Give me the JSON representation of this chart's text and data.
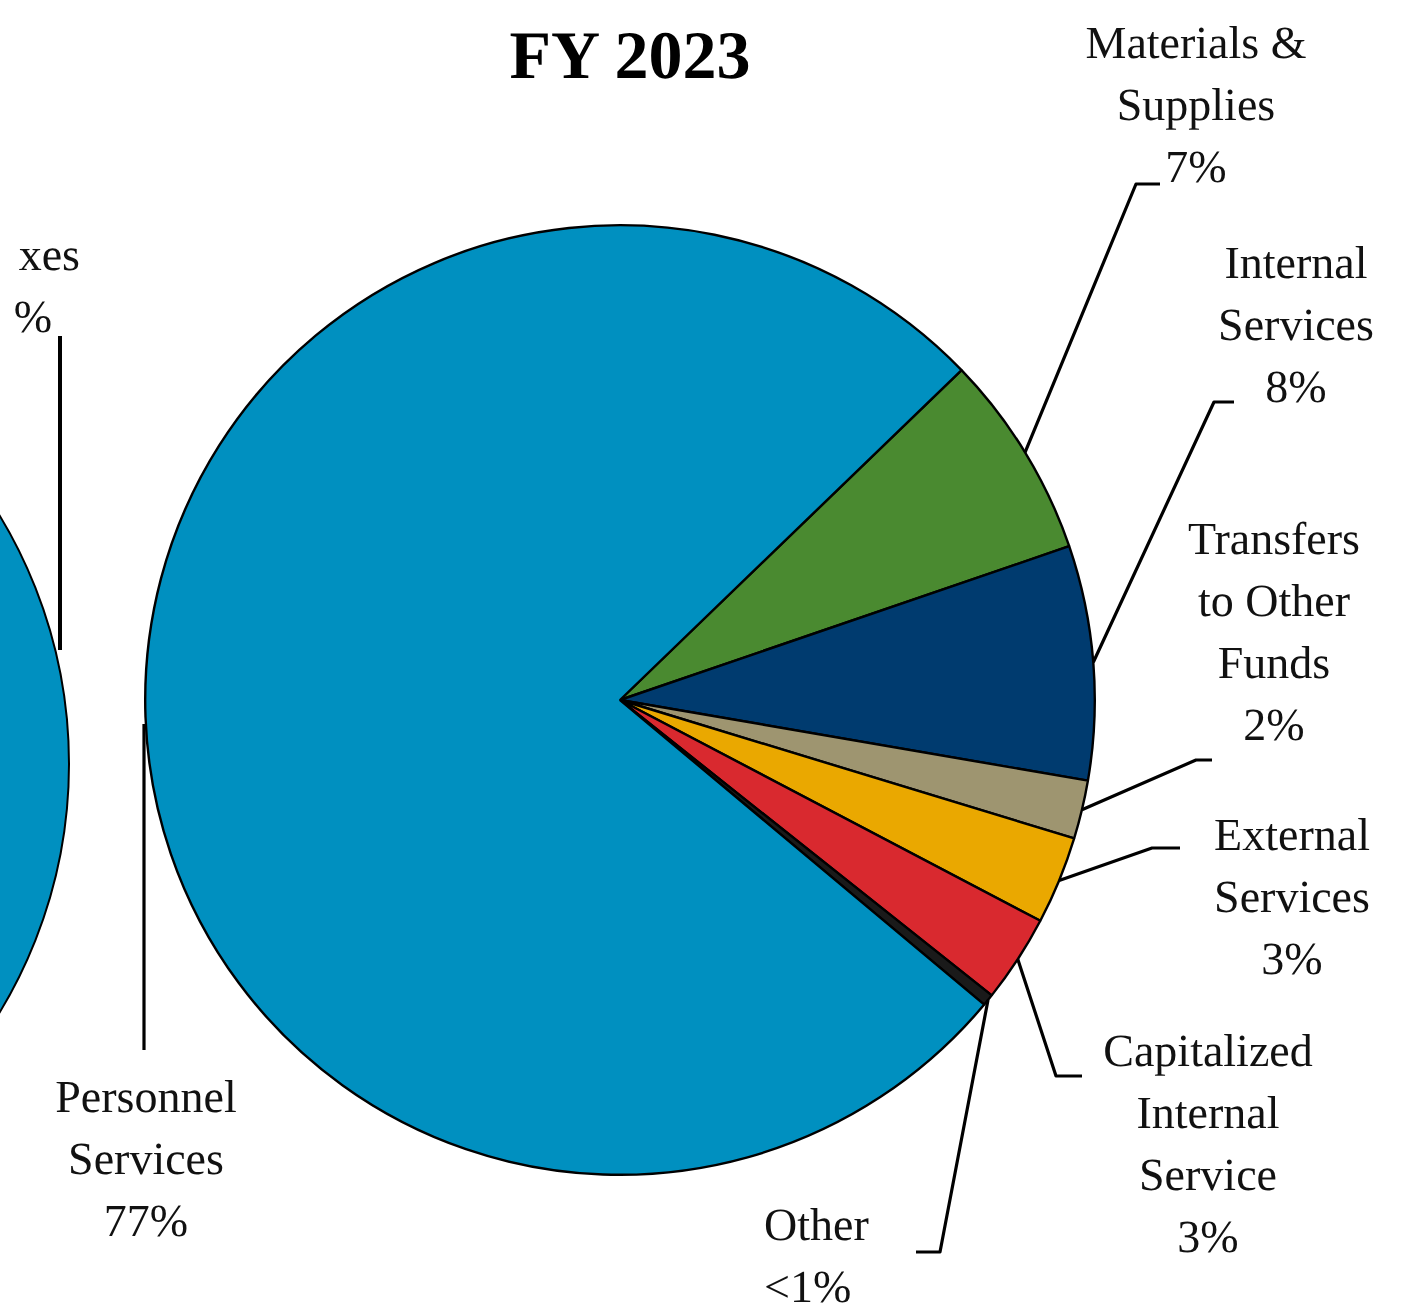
{
  "chart_data": [
    {
      "type": "other",
      "annotations": [
        "xes",
        "%"
      ],
      "color": "#0090c0"
    },
    {
      "type": "pie",
      "title": "FY 2023",
      "categories": [
        "Materials & Supplies",
        "Internal Services",
        "Transfers to Other Funds",
        "External Services",
        "Capitalized Internal Service",
        "Other",
        "Personnel Services"
      ],
      "values": [
        7,
        8,
        2,
        3,
        3,
        0.4,
        77
      ],
      "value_labels": [
        "7%",
        "8%",
        "2%",
        "3%",
        "3%",
        "<1%",
        "77%"
      ],
      "colors": [
        "#4a8a30",
        "#003b6f",
        "#9e9570",
        "#eaa800",
        "#d9292f",
        "#1a1a1a",
        "#0090c0"
      ]
    }
  ]
}
